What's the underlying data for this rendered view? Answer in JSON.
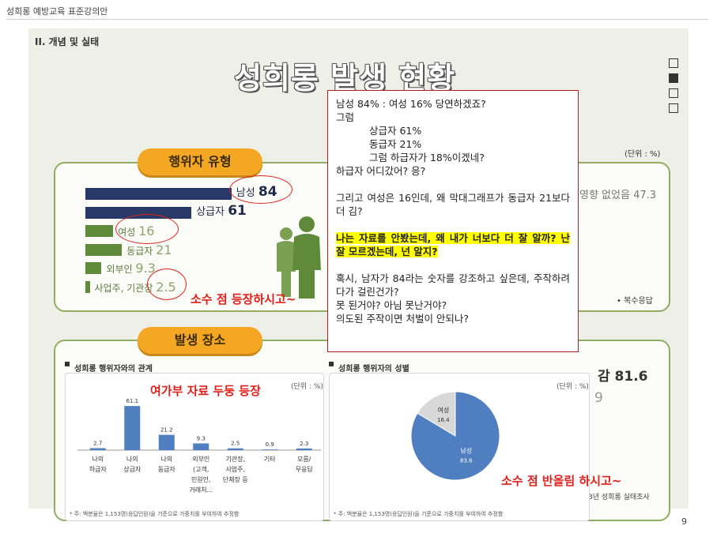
{
  "doc_header": "성희롱 예방교육 표준강의안",
  "section_label": "II. 개념 및 실태",
  "title": "성희롱 발생 현황",
  "page_number": "9",
  "nav_boxes": [
    false,
    true,
    false,
    false
  ],
  "colors": {
    "navy": "#2a3a68",
    "green": "#5e8a3a",
    "orange": "#f3a722",
    "red": "#e0201a",
    "blue": "#4f7fc1",
    "gray": "#d8d8d8"
  },
  "perpetrator": {
    "pill": "행위자 유형",
    "unit": "(단위 : %)",
    "bars": [
      {
        "label": "남성",
        "value": 84,
        "value_text": "84",
        "color": "navy"
      },
      {
        "label": "상급자",
        "value": 61,
        "value_text": "61",
        "color": "navy"
      },
      {
        "label": "여성",
        "value": 16,
        "value_text": "16",
        "color": "green"
      },
      {
        "label": "동급자",
        "value": 21,
        "value_text": "21",
        "color": "green"
      },
      {
        "label": "외부인",
        "value": 9.3,
        "value_text": "9.3",
        "color": "green"
      },
      {
        "label": "사업주, 기관장",
        "value": 2.5,
        "value_text": "2.5",
        "color": "green"
      }
    ],
    "right_partial": "영향 없었음 47.3",
    "right_note": "• 복수응답",
    "red_note": "소수 점 등장하시고~"
  },
  "place": {
    "pill": "발생 장소",
    "right_partial_value": "감 81.6",
    "right_partial_digit": "9",
    "survey_caption": "3년 성희롱 실태조사"
  },
  "chart_data": [
    {
      "type": "bar",
      "title": "성희롱 행위자와의 관계",
      "unit": "(단위 : %)",
      "categories": [
        [
          "나의",
          "하급자"
        ],
        [
          "나의",
          "상급자"
        ],
        [
          "나의",
          "동급자"
        ],
        [
          "외부인",
          "(고객,",
          "민원인,",
          "거래처..."
        ],
        [
          "기관장,",
          "사업주,",
          "단체장 등"
        ],
        [
          "기타"
        ],
        [
          "모름/",
          "무응답"
        ]
      ],
      "values": [
        2.7,
        61.1,
        21.2,
        9.3,
        2.5,
        0.9,
        2.3
      ],
      "value_labels": [
        "2.7",
        "61.1",
        "21.2",
        "9.3",
        "2.5",
        "0.9",
        "2.3"
      ],
      "ylim": [
        0,
        70
      ],
      "footnote": "* 주: 백분율은 1,153명(응답인원)을 기준으로 가중치를 부여하여 추정함",
      "red_note": "여가부 자료 두둥 등장"
    },
    {
      "type": "pie",
      "title": "성희롱 행위자의 성별",
      "unit": "(단위 : %)",
      "slices": [
        {
          "label": "남성",
          "value": 83.6,
          "value_text": "83.6",
          "color": "blue"
        },
        {
          "label": "여성",
          "value": 16.4,
          "value_text": "16.4",
          "color": "gray"
        }
      ],
      "footnote": "* 주: 백분율은 1,153명(응답인원)을 기준으로 가중치를 부여하여 추정함",
      "red_note": "소수 점 반올림 하시고~"
    }
  ],
  "popup": {
    "lines": [
      {
        "text": "남성 84% : 여성 16% 당연하겠죠?",
        "style": ""
      },
      {
        "text": "그럼",
        "style": ""
      },
      {
        "text": "상급자 61%",
        "style": "indent"
      },
      {
        "text": "동급자 21%",
        "style": "indent"
      },
      {
        "text": "그럼 하급자가 18%이겠네?",
        "style": "indent"
      },
      {
        "text": "하급자 어디갔어? 응?",
        "style": ""
      },
      {
        "text": "",
        "style": "gap"
      },
      {
        "text": "그리고 여성은 16인데, 왜 막대그래프가 동급자 21보다 더 김?",
        "style": "justify"
      },
      {
        "text": "",
        "style": "gap"
      },
      {
        "text": "나는 자료를 안봤는데, 왜 내가 너보다 더 잘 알까? 난 잘 모르겠는데, 넌 알지?",
        "style": "justify hl-wrap"
      },
      {
        "text": "",
        "style": "gap"
      },
      {
        "text": "혹시, 남자가 84라는 숫자를 강조하고 싶은데, 주작하려다가 걸린건가?",
        "style": "justify"
      },
      {
        "text": "못 된거야? 아님 못난거야?",
        "style": ""
      },
      {
        "text": "의도된 주작이면 처벌이 안되나?",
        "style": ""
      }
    ]
  }
}
